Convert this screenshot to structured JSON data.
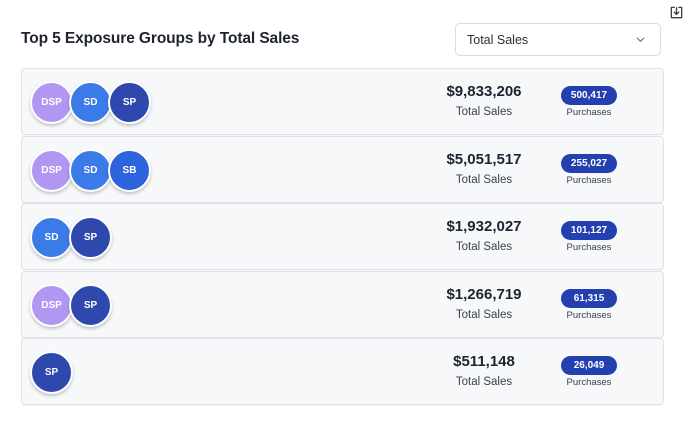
{
  "header": {
    "title": "Top 5 Exposure Groups by Total Sales",
    "select_value": "Total Sales"
  },
  "colors": {
    "DSP": "#b197f2",
    "SD": "#3b7be8",
    "SP": "#2f48ad",
    "SB": "#2d63dc",
    "badge": "#2440b0"
  },
  "groups": [
    {
      "channels": [
        "DSP",
        "SD",
        "SP"
      ],
      "sales": "$9,833,206",
      "sales_label": "Total Sales",
      "purchases": "500,417",
      "purchases_label": "Purchases"
    },
    {
      "channels": [
        "DSP",
        "SD",
        "SB"
      ],
      "sales": "$5,051,517",
      "sales_label": "Total Sales",
      "purchases": "255,027",
      "purchases_label": "Purchases"
    },
    {
      "channels": [
        "SD",
        "SP"
      ],
      "sales": "$1,932,027",
      "sales_label": "Total Sales",
      "purchases": "101,127",
      "purchases_label": "Purchases"
    },
    {
      "channels": [
        "DSP",
        "SP"
      ],
      "sales": "$1,266,719",
      "sales_label": "Total Sales",
      "purchases": "61,315",
      "purchases_label": "Purchases"
    },
    {
      "channels": [
        "SP"
      ],
      "sales": "$511,148",
      "sales_label": "Total Sales",
      "purchases": "26,049",
      "purchases_label": "Purchases"
    }
  ]
}
